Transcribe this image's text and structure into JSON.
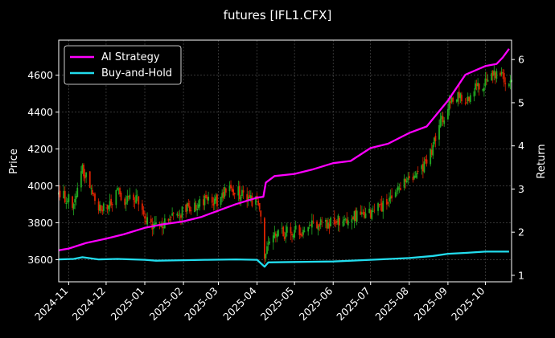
{
  "chart_data": {
    "type": "candlestick+line",
    "title": "futures [IFL1.CFX]",
    "xlabel": "",
    "ylabel_left": "Price",
    "ylabel_right": "Return",
    "ylim_left": [
      3480,
      4790
    ],
    "ylim_right": [
      0.85,
      6.45
    ],
    "xlim": [
      "2024-10-24",
      "2025-10-22"
    ],
    "grid": true,
    "legend_position": "top-left",
    "x_tick_labels": [
      "2024-11",
      "2024-12",
      "2025-01",
      "2025-02",
      "2025-03",
      "2025-04",
      "2025-05",
      "2025-06",
      "2025-07",
      "2025-08",
      "2025-09",
      "2025-10"
    ],
    "x_tick_dates": [
      "2024-11-01",
      "2024-12-01",
      "2025-01-01",
      "2025-02-01",
      "2025-03-01",
      "2025-04-01",
      "2025-05-01",
      "2025-06-01",
      "2025-07-01",
      "2025-08-01",
      "2025-09-01",
      "2025-10-01"
    ],
    "y_left_ticks": [
      3600,
      3800,
      4000,
      4200,
      4400,
      4600
    ],
    "y_right_ticks": [
      1,
      2,
      3,
      4,
      5,
      6
    ],
    "colors": {
      "up": "#22aa22",
      "down": "#dd2200",
      "ai_strategy": "#ff00ff",
      "buy_and_hold": "#22ddee",
      "grid": "#555555",
      "background": "#000000"
    },
    "price_anchors": [
      [
        "2024-10-24",
        3960
      ],
      [
        "2024-10-30",
        3940
      ],
      [
        "2024-11-05",
        3910
      ],
      [
        "2024-11-08",
        4000
      ],
      [
        "2024-11-12",
        4080
      ],
      [
        "2024-11-18",
        4000
      ],
      [
        "2024-11-22",
        3900
      ],
      [
        "2024-11-28",
        3870
      ],
      [
        "2024-12-03",
        3900
      ],
      [
        "2024-12-10",
        3960
      ],
      [
        "2024-12-18",
        3920
      ],
      [
        "2024-12-25",
        3950
      ],
      [
        "2025-01-02",
        3810
      ],
      [
        "2025-01-10",
        3780
      ],
      [
        "2025-01-16",
        3810
      ],
      [
        "2025-01-24",
        3840
      ],
      [
        "2025-02-05",
        3880
      ],
      [
        "2025-02-12",
        3900
      ],
      [
        "2025-02-20",
        3930
      ],
      [
        "2025-02-28",
        3920
      ],
      [
        "2025-03-06",
        3960
      ],
      [
        "2025-03-14",
        3980
      ],
      [
        "2025-03-22",
        3940
      ],
      [
        "2025-03-31",
        3910
      ],
      [
        "2025-04-03",
        3900
      ],
      [
        "2025-04-07",
        3600
      ],
      [
        "2025-04-10",
        3700
      ],
      [
        "2025-04-18",
        3730
      ],
      [
        "2025-04-28",
        3760
      ],
      [
        "2025-05-08",
        3760
      ],
      [
        "2025-05-14",
        3800
      ],
      [
        "2025-05-22",
        3790
      ],
      [
        "2025-06-01",
        3800
      ],
      [
        "2025-06-10",
        3820
      ],
      [
        "2025-06-20",
        3840
      ],
      [
        "2025-06-30",
        3850
      ],
      [
        "2025-07-08",
        3880
      ],
      [
        "2025-07-16",
        3930
      ],
      [
        "2025-07-24",
        3970
      ],
      [
        "2025-08-01",
        4040
      ],
      [
        "2025-08-10",
        4090
      ],
      [
        "2025-08-18",
        4180
      ],
      [
        "2025-08-25",
        4330
      ],
      [
        "2025-09-01",
        4420
      ],
      [
        "2025-09-08",
        4480
      ],
      [
        "2025-09-16",
        4460
      ],
      [
        "2025-09-24",
        4530
      ],
      [
        "2025-10-01",
        4560
      ],
      [
        "2025-10-10",
        4620
      ],
      [
        "2025-10-16",
        4580
      ],
      [
        "2025-10-22",
        4560
      ]
    ],
    "series": [
      {
        "name": "AI Strategy",
        "axis": "right",
        "points": [
          [
            "2024-10-24",
            1.58
          ],
          [
            "2024-11-01",
            1.62
          ],
          [
            "2024-11-15",
            1.75
          ],
          [
            "2024-12-01",
            1.85
          ],
          [
            "2024-12-15",
            1.95
          ],
          [
            "2025-01-01",
            2.1
          ],
          [
            "2025-01-15",
            2.18
          ],
          [
            "2025-02-01",
            2.25
          ],
          [
            "2025-02-15",
            2.35
          ],
          [
            "2025-03-01",
            2.5
          ],
          [
            "2025-03-15",
            2.65
          ],
          [
            "2025-04-01",
            2.8
          ],
          [
            "2025-04-06",
            2.82
          ],
          [
            "2025-04-08",
            3.15
          ],
          [
            "2025-04-15",
            3.3
          ],
          [
            "2025-05-01",
            3.35
          ],
          [
            "2025-05-15",
            3.45
          ],
          [
            "2025-06-01",
            3.6
          ],
          [
            "2025-06-15",
            3.65
          ],
          [
            "2025-07-01",
            3.95
          ],
          [
            "2025-07-15",
            4.05
          ],
          [
            "2025-08-01",
            4.3
          ],
          [
            "2025-08-15",
            4.45
          ],
          [
            "2025-09-01",
            5.05
          ],
          [
            "2025-09-15",
            5.65
          ],
          [
            "2025-10-01",
            5.85
          ],
          [
            "2025-10-10",
            5.9
          ],
          [
            "2025-10-15",
            6.05
          ],
          [
            "2025-10-20",
            6.25
          ]
        ]
      },
      {
        "name": "Buy-and-Hold",
        "axis": "right",
        "points": [
          [
            "2024-10-24",
            1.37
          ],
          [
            "2024-11-05",
            1.38
          ],
          [
            "2024-11-12",
            1.42
          ],
          [
            "2024-11-25",
            1.37
          ],
          [
            "2024-12-10",
            1.38
          ],
          [
            "2025-01-01",
            1.36
          ],
          [
            "2025-01-10",
            1.34
          ],
          [
            "2025-02-01",
            1.35
          ],
          [
            "2025-02-20",
            1.36
          ],
          [
            "2025-03-15",
            1.37
          ],
          [
            "2025-04-01",
            1.36
          ],
          [
            "2025-04-07",
            1.2
          ],
          [
            "2025-04-10",
            1.3
          ],
          [
            "2025-05-01",
            1.31
          ],
          [
            "2025-06-01",
            1.32
          ],
          [
            "2025-07-01",
            1.36
          ],
          [
            "2025-08-01",
            1.4
          ],
          [
            "2025-08-20",
            1.45
          ],
          [
            "2025-09-01",
            1.5
          ],
          [
            "2025-09-15",
            1.52
          ],
          [
            "2025-10-01",
            1.55
          ],
          [
            "2025-10-20",
            1.55
          ]
        ]
      }
    ]
  }
}
